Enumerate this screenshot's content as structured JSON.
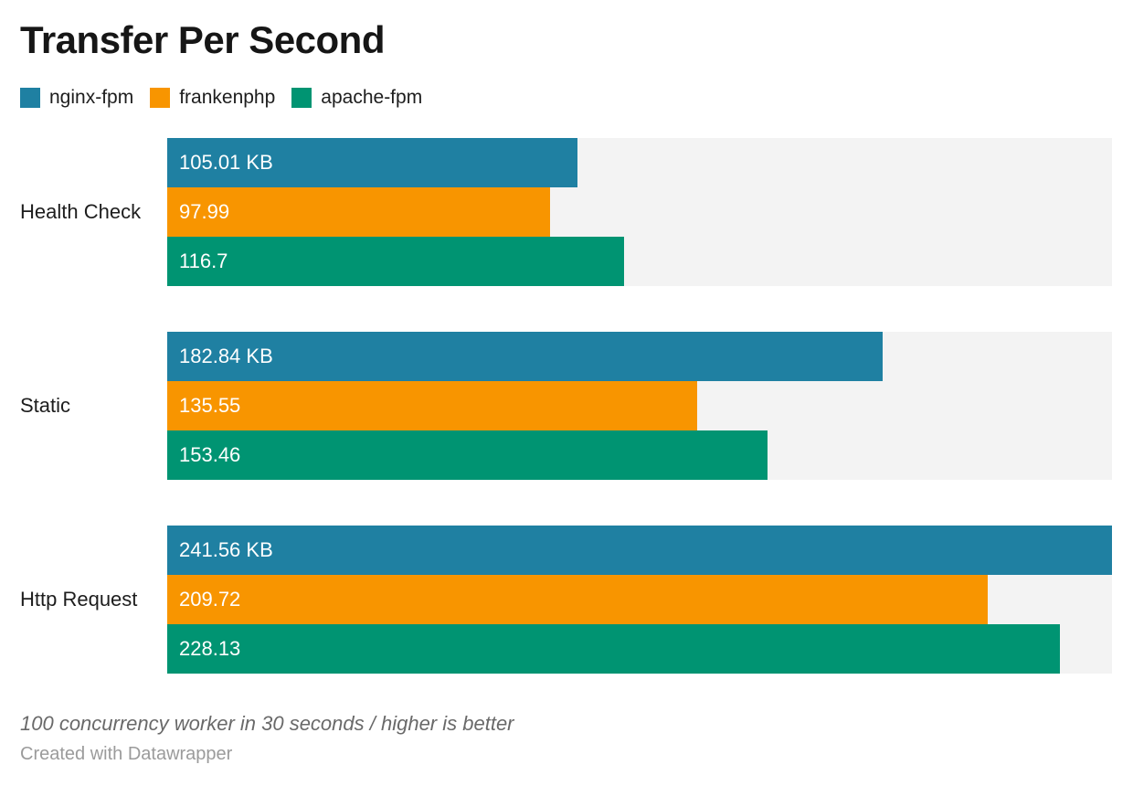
{
  "footer": {
    "attribution": "Created with Datawrapper"
  },
  "chart_data": {
    "type": "bar",
    "orientation": "horizontal",
    "title": "Transfer Per Second",
    "notes": "100 concurrency worker in 30 seconds / higher is better",
    "unit": "KB",
    "xmax": 241.56,
    "xlim": [
      0,
      241.56
    ],
    "grid": false,
    "legend_position": "top",
    "track_color": "#f3f3f3",
    "categories": [
      "Health Check",
      "Static",
      "Http Request"
    ],
    "series": [
      {
        "name": "nginx-fpm",
        "color": "#1f80a2",
        "values": [
          105.01,
          182.84,
          241.56
        ],
        "bar_labels": [
          "105.01 KB",
          "182.84 KB",
          "241.56 KB"
        ]
      },
      {
        "name": "frankenphp",
        "color": "#f89500",
        "values": [
          97.99,
          135.55,
          209.72
        ],
        "bar_labels": [
          "97.99",
          "135.55",
          "209.72"
        ]
      },
      {
        "name": "apache-fpm",
        "color": "#009472",
        "values": [
          116.7,
          153.46,
          228.13
        ],
        "bar_labels": [
          "116.7",
          "153.46",
          "228.13"
        ]
      }
    ]
  }
}
